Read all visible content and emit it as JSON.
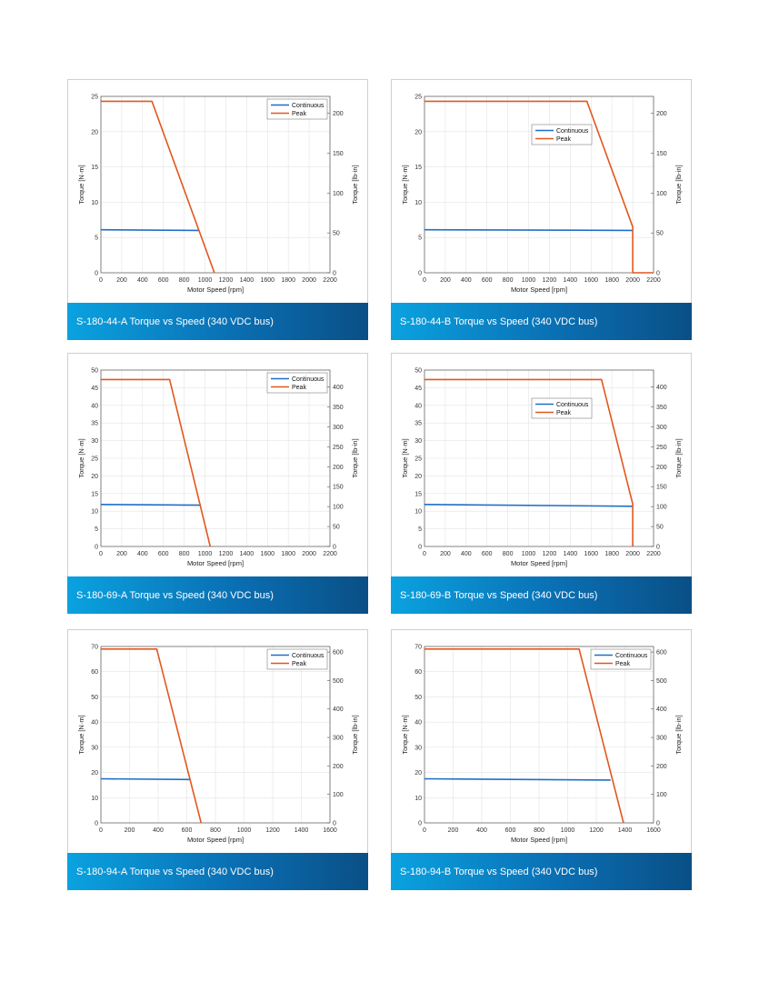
{
  "chart_data": [
    {
      "type": "line",
      "caption": "S-180-44-A Torque vs Speed (340 VDC bus)",
      "xlabel": "Motor Speed [rpm]",
      "ylabel": "Torque [N·m]",
      "y2label": "Torque [lb-in]",
      "xlim": [
        0,
        2200
      ],
      "xticks": [
        0,
        200,
        400,
        600,
        800,
        1000,
        1200,
        1400,
        1600,
        1800,
        2000,
        2200
      ],
      "ylim": [
        0,
        25
      ],
      "yticks": [
        0,
        5,
        10,
        15,
        20,
        25
      ],
      "y2lim": [
        0,
        221.27
      ],
      "y2ticks": [
        0,
        50,
        100,
        150,
        200
      ],
      "grid": true,
      "legend_position": "top-right",
      "series": [
        {
          "name": "Continuous",
          "color": "#1f6fc6",
          "x": [
            0,
            940
          ],
          "y": [
            6.1,
            6.0
          ]
        },
        {
          "name": "Peak",
          "color": "#e2571e",
          "x": [
            0,
            490,
            1090
          ],
          "y": [
            24.3,
            24.3,
            0
          ]
        }
      ]
    },
    {
      "type": "line",
      "caption": "S-180-44-B Torque vs Speed (340 VDC bus)",
      "xlabel": "Motor Speed [rpm]",
      "ylabel": "Torque [N·m]",
      "y2label": "Torque [lb-in]",
      "xlim": [
        0,
        2200
      ],
      "xticks": [
        0,
        200,
        400,
        600,
        800,
        1000,
        1200,
        1400,
        1600,
        1800,
        2000,
        2200
      ],
      "ylim": [
        0,
        25
      ],
      "yticks": [
        0,
        5,
        10,
        15,
        20,
        25
      ],
      "y2lim": [
        0,
        221.27
      ],
      "y2ticks": [
        0,
        50,
        100,
        150,
        200
      ],
      "grid": true,
      "legend_position": "top-center",
      "series": [
        {
          "name": "Continuous",
          "color": "#1f6fc6",
          "x": [
            0,
            2000
          ],
          "y": [
            6.1,
            6.0
          ]
        },
        {
          "name": "Peak",
          "color": "#e2571e",
          "x": [
            0,
            1560,
            2000,
            2000,
            2200
          ],
          "y": [
            24.3,
            24.3,
            6.5,
            0,
            0
          ]
        }
      ]
    },
    {
      "type": "line",
      "caption": "S-180-69-A Torque vs Speed (340 VDC bus)",
      "xlabel": "Motor Speed [rpm]",
      "ylabel": "Torque [N·m]",
      "y2label": "Torque [lb-in]",
      "xlim": [
        0,
        2200
      ],
      "xticks": [
        0,
        200,
        400,
        600,
        800,
        1000,
        1200,
        1400,
        1600,
        1800,
        2000,
        2200
      ],
      "ylim": [
        0,
        50
      ],
      "yticks": [
        0,
        5,
        10,
        15,
        20,
        25,
        30,
        35,
        40,
        45,
        50
      ],
      "y2lim": [
        0,
        442.54
      ],
      "y2ticks": [
        0,
        50,
        100,
        150,
        200,
        250,
        300,
        350,
        400
      ],
      "grid": true,
      "legend_position": "top-right",
      "series": [
        {
          "name": "Continuous",
          "color": "#1f6fc6",
          "x": [
            0,
            960
          ],
          "y": [
            11.9,
            11.7
          ]
        },
        {
          "name": "Peak",
          "color": "#e2571e",
          "x": [
            0,
            660,
            1050
          ],
          "y": [
            47.3,
            47.3,
            0
          ]
        }
      ]
    },
    {
      "type": "line",
      "caption": "S-180-69-B Torque vs Speed (340 VDC bus)",
      "xlabel": "Motor Speed [rpm]",
      "ylabel": "Torque [N·m]",
      "y2label": "Torque [lb-in]",
      "xlim": [
        0,
        2200
      ],
      "xticks": [
        0,
        200,
        400,
        600,
        800,
        1000,
        1200,
        1400,
        1600,
        1800,
        2000,
        2200
      ],
      "ylim": [
        0,
        50
      ],
      "yticks": [
        0,
        5,
        10,
        15,
        20,
        25,
        30,
        35,
        40,
        45,
        50
      ],
      "y2lim": [
        0,
        442.54
      ],
      "y2ticks": [
        0,
        50,
        100,
        150,
        200,
        250,
        300,
        350,
        400
      ],
      "grid": true,
      "legend_position": "top-center",
      "series": [
        {
          "name": "Continuous",
          "color": "#1f6fc6",
          "x": [
            0,
            2000
          ],
          "y": [
            11.9,
            11.4
          ]
        },
        {
          "name": "Peak",
          "color": "#e2571e",
          "x": [
            0,
            1700,
            2000,
            2000
          ],
          "y": [
            47.3,
            47.3,
            12,
            0
          ]
        }
      ]
    },
    {
      "type": "line",
      "caption": "S-180-94-A Torque vs Speed (340 VDC bus)",
      "xlabel": "Motor Speed [rpm]",
      "ylabel": "Torque [N·m]",
      "y2label": "Torque [lb-in]",
      "xlim": [
        0,
        1600
      ],
      "xticks": [
        0,
        200,
        400,
        600,
        800,
        1000,
        1200,
        1400,
        1600
      ],
      "ylim": [
        0,
        70
      ],
      "yticks": [
        0,
        10,
        20,
        30,
        40,
        50,
        60,
        70
      ],
      "y2lim": [
        0,
        619.56
      ],
      "y2ticks": [
        0,
        100,
        200,
        300,
        400,
        500,
        600
      ],
      "grid": true,
      "legend_position": "top-right",
      "series": [
        {
          "name": "Continuous",
          "color": "#1f6fc6",
          "x": [
            0,
            620
          ],
          "y": [
            17.5,
            17.2
          ]
        },
        {
          "name": "Peak",
          "color": "#e2571e",
          "x": [
            0,
            390,
            700
          ],
          "y": [
            69,
            69,
            0
          ]
        }
      ]
    },
    {
      "type": "line",
      "caption": "S-180-94-B Torque vs Speed (340 VDC bus)",
      "xlabel": "Motor Speed [rpm]",
      "ylabel": "Torque [N·m]",
      "y2label": "Torque [lb-in]",
      "xlim": [
        0,
        1600
      ],
      "xticks": [
        0,
        200,
        400,
        600,
        800,
        1000,
        1200,
        1400,
        1600
      ],
      "ylim": [
        0,
        70
      ],
      "yticks": [
        0,
        10,
        20,
        30,
        40,
        50,
        60,
        70
      ],
      "y2lim": [
        0,
        619.56
      ],
      "y2ticks": [
        0,
        100,
        200,
        300,
        400,
        500,
        600
      ],
      "grid": true,
      "legend_position": "top-right",
      "series": [
        {
          "name": "Continuous",
          "color": "#1f6fc6",
          "x": [
            0,
            1300
          ],
          "y": [
            17.5,
            17.0
          ]
        },
        {
          "name": "Peak",
          "color": "#e2571e",
          "x": [
            0,
            1080,
            1390
          ],
          "y": [
            69,
            69,
            0
          ]
        }
      ]
    }
  ]
}
